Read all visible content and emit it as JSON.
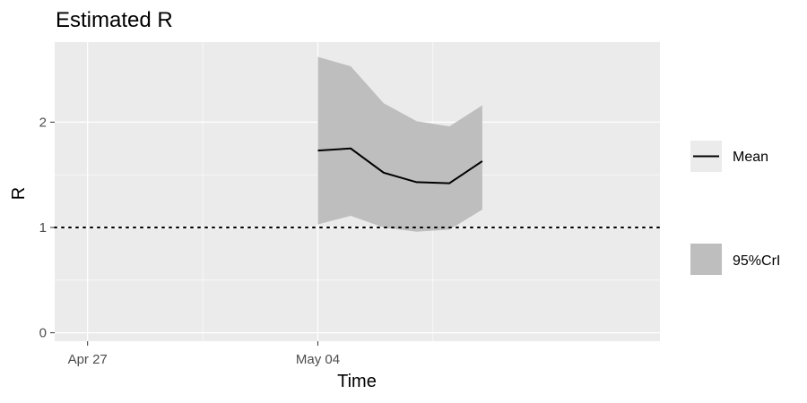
{
  "chart_data": {
    "type": "line",
    "title": "Estimated R",
    "xlabel": "Time",
    "ylabel": "R",
    "x_range": [
      "2020-04-26",
      "2020-05-14"
    ],
    "xlim": [
      -1,
      17.4
    ],
    "ylim": [
      -0.08,
      2.76
    ],
    "x_ticks": [
      {
        "x": 0,
        "label": "Apr 27"
      },
      {
        "x": 7,
        "label": "May 04"
      }
    ],
    "y_ticks": [
      0,
      1,
      2
    ],
    "reference_line": {
      "y": 1,
      "style": "dotted"
    },
    "series": [
      {
        "name": "Mean",
        "kind": "line",
        "x": [
          7,
          8,
          9,
          10,
          11,
          12
        ],
        "values": [
          1.73,
          1.75,
          1.52,
          1.43,
          1.42,
          1.63
        ]
      },
      {
        "name": "95%CrI",
        "kind": "ribbon",
        "x": [
          7,
          8,
          9,
          10,
          11,
          12
        ],
        "lower": [
          1.03,
          1.11,
          1.0,
          0.96,
          0.98,
          1.17
        ],
        "upper": [
          2.62,
          2.53,
          2.18,
          2.01,
          1.96,
          2.16
        ]
      }
    ],
    "grid": true,
    "legend": {
      "position": "right",
      "entries": [
        "Mean",
        "95%CrI"
      ]
    },
    "colors": {
      "panel": "#ebebeb",
      "grid": "#ffffff",
      "ribbon": "#bebebe",
      "line": "#000000"
    }
  }
}
